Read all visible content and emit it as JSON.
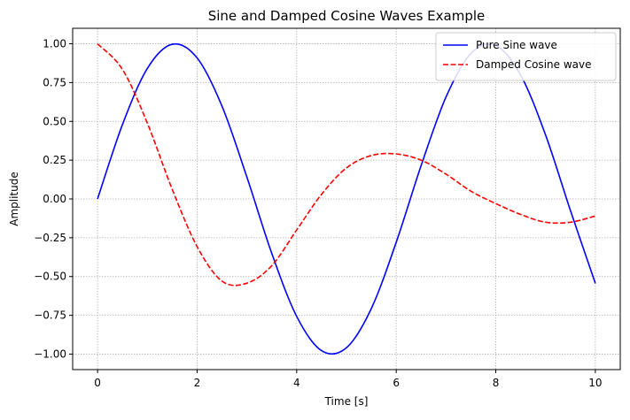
{
  "chart_data": {
    "type": "line",
    "title": "Sine and Damped Cosine Waves Example",
    "xlabel": "Time [s]",
    "ylabel": "Amplitude",
    "xlim": [
      -0.5,
      10.5
    ],
    "ylim": [
      -1.1,
      1.1
    ],
    "xticks": [
      0,
      2,
      4,
      6,
      8,
      10
    ],
    "xtick_labels": [
      "0",
      "2",
      "4",
      "6",
      "8",
      "10"
    ],
    "yticks": [
      1.0,
      0.75,
      0.5,
      0.25,
      0.0,
      -0.25,
      -0.5,
      -0.75,
      -1.0
    ],
    "ytick_labels": [
      "1.00",
      "0.75",
      "0.50",
      "0.25",
      "0.00",
      "−0.25",
      "−0.50",
      "−0.75",
      "−1.00"
    ],
    "grid": true,
    "legend_position": "top-right",
    "series": [
      {
        "name": "Pure Sine wave",
        "color": "#0000ff",
        "style": "solid",
        "x": [
          0.0,
          0.5,
          1.0,
          1.5,
          2.0,
          2.5,
          3.0,
          3.5,
          4.0,
          4.5,
          5.0,
          5.5,
          6.0,
          6.5,
          7.0,
          7.5,
          8.0,
          8.5,
          9.0,
          9.5,
          10.0
        ],
        "y": [
          0.0,
          0.479,
          0.841,
          0.997,
          0.909,
          0.598,
          0.141,
          -0.351,
          -0.757,
          -0.978,
          -0.959,
          -0.706,
          -0.279,
          0.215,
          0.657,
          0.938,
          0.989,
          0.798,
          0.412,
          -0.075,
          -0.544
        ]
      },
      {
        "name": "Damped Cosine wave",
        "color": "#ff0000",
        "style": "dashed",
        "x": [
          0.0,
          0.5,
          1.0,
          1.5,
          2.0,
          2.5,
          3.0,
          3.5,
          4.0,
          4.5,
          5.0,
          5.5,
          6.0,
          6.5,
          7.0,
          7.5,
          8.0,
          8.5,
          9.0,
          9.5,
          10.0
        ],
        "y": [
          1.0,
          0.835,
          0.489,
          0.062,
          -0.307,
          -0.53,
          -0.543,
          -0.43,
          -0.2,
          0.03,
          0.2,
          0.28,
          0.29,
          0.25,
          0.16,
          0.05,
          -0.03,
          -0.1,
          -0.15,
          -0.15,
          -0.11
        ]
      }
    ]
  }
}
